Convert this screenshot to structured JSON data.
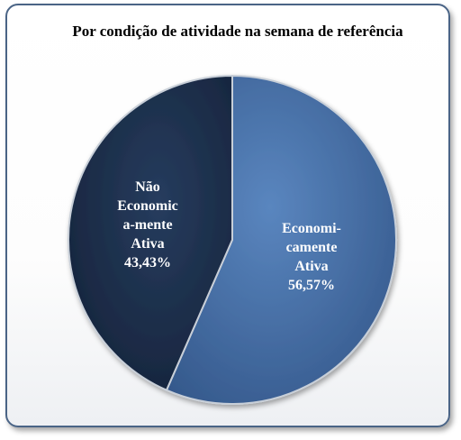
{
  "chart_data": {
    "type": "pie",
    "title": "Por condição de atividade na semana de referência",
    "slices": [
      {
        "label_lines": [
          "Economi-",
          "camente",
          "Ativa",
          "56,57%"
        ],
        "value": 56.57,
        "color": "#4470a8"
      },
      {
        "label_lines": [
          "Não",
          "Economic",
          "a-mente",
          "Ativa",
          "43,43%"
        ],
        "value": 43.43,
        "color": "#1c2f4c"
      }
    ],
    "start_angle_deg": 0,
    "direction": "clockwise",
    "legend": "none"
  }
}
